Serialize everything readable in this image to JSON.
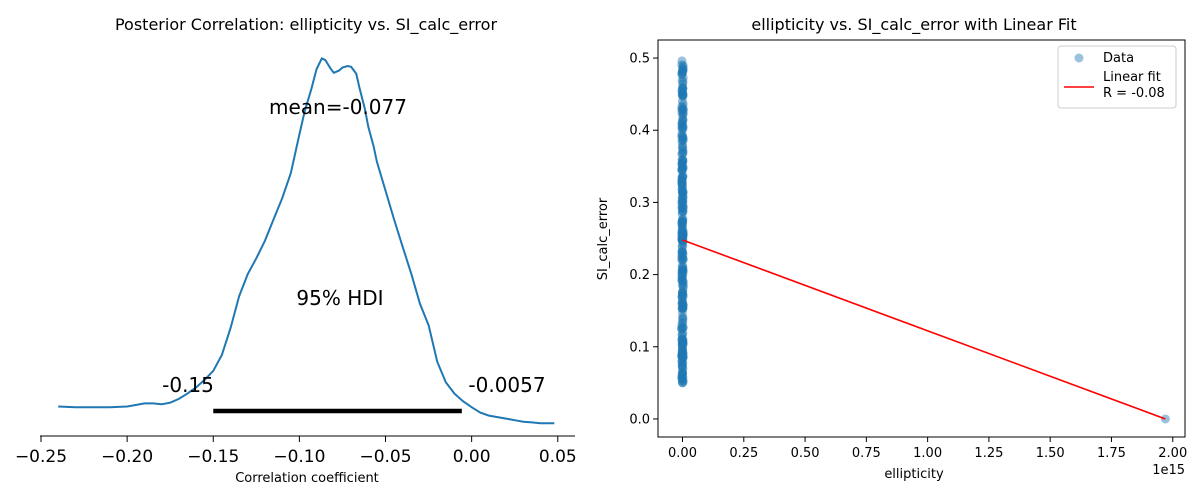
{
  "chart_data": [
    {
      "type": "line",
      "title": "Posterior Correlation: ellipticity vs. SI_calc_error",
      "xlabel": "Correlation coefficient",
      "ylabel": "",
      "xlim": [
        -0.25,
        0.06
      ],
      "xticks": [
        "−0.25",
        "−0.20",
        "−0.15",
        "−0.10",
        "−0.05",
        "0.00",
        "0.05"
      ],
      "xtick_values": [
        -0.25,
        -0.2,
        -0.15,
        -0.1,
        -0.05,
        0.0,
        0.05
      ],
      "grid": false,
      "series": [
        {
          "color": "#1f77b4",
          "x": [
            -0.24,
            -0.23,
            -0.22,
            -0.21,
            -0.2,
            -0.195,
            -0.19,
            -0.185,
            -0.18,
            -0.175,
            -0.17,
            -0.165,
            -0.16,
            -0.155,
            -0.15,
            -0.145,
            -0.14,
            -0.135,
            -0.13,
            -0.125,
            -0.12,
            -0.115,
            -0.11,
            -0.105,
            -0.1,
            -0.097,
            -0.093,
            -0.09,
            -0.087,
            -0.085,
            -0.082,
            -0.08,
            -0.077,
            -0.075,
            -0.072,
            -0.07,
            -0.067,
            -0.065,
            -0.062,
            -0.06,
            -0.057,
            -0.055,
            -0.05,
            -0.045,
            -0.04,
            -0.035,
            -0.03,
            -0.025,
            -0.02,
            -0.015,
            -0.01,
            -0.005,
            0.0,
            0.005,
            0.01,
            0.015,
            0.02,
            0.025,
            0.03,
            0.035,
            0.04,
            0.045,
            0.048
          ],
          "y": [
            0.02,
            0.01,
            0.01,
            0.01,
            0.02,
            0.04,
            0.06,
            0.06,
            0.05,
            0.07,
            0.12,
            0.19,
            0.27,
            0.37,
            0.49,
            0.7,
            1.05,
            1.47,
            1.76,
            1.97,
            2.2,
            2.48,
            2.76,
            3.09,
            3.6,
            3.9,
            4.2,
            4.46,
            4.6,
            4.58,
            4.47,
            4.41,
            4.44,
            4.48,
            4.5,
            4.49,
            4.4,
            4.2,
            3.94,
            3.7,
            3.45,
            3.24,
            2.86,
            2.48,
            2.12,
            1.76,
            1.37,
            1.09,
            0.61,
            0.34,
            0.19,
            0.09,
            0.01,
            -0.06,
            -0.1,
            -0.12,
            -0.14,
            -0.16,
            -0.18,
            -0.19,
            -0.2,
            -0.2,
            -0.2
          ]
        }
      ],
      "hdi": {
        "x_low": -0.15,
        "x_high": -0.0057,
        "low_label": "-0.15",
        "high_label": "-0.0057",
        "caption": "95% HDI"
      },
      "mean": {
        "value": -0.077,
        "label": "mean=-0.077"
      }
    },
    {
      "type": "scatter",
      "title": "ellipticity vs. SI_calc_error with Linear Fit",
      "xlabel": "ellipticity",
      "ylabel": "SI_calc_error",
      "offset_text": "1e15",
      "xlim": [
        -0.1,
        2.05
      ],
      "ylim": [
        -0.025,
        0.525
      ],
      "xticks": [
        "0.00",
        "0.25",
        "0.50",
        "0.75",
        "1.00",
        "1.25",
        "1.50",
        "1.75",
        "2.00"
      ],
      "xtick_values": [
        0,
        0.25,
        0.5,
        0.75,
        1.0,
        1.25,
        1.5,
        1.75,
        2.0
      ],
      "yticks": [
        "0.0",
        "0.1",
        "0.2",
        "0.3",
        "0.4",
        "0.5"
      ],
      "ytick_values": [
        0,
        0.1,
        0.2,
        0.3,
        0.4,
        0.5
      ],
      "grid": false,
      "legend_position": "top-right",
      "series": [
        {
          "name": "Data",
          "color": "#1f77b4",
          "opacity": 0.45,
          "cluster_x": 0.0,
          "cluster_y_range": [
            0.05,
            0.5
          ],
          "cluster_count": 300,
          "points": [
            {
              "x": 1.97,
              "y": 0.0
            }
          ]
        },
        {
          "name": "Linear fit",
          "name_line2": "R = -0.08",
          "color": "#ff0000",
          "x": [
            0.0,
            1.97
          ],
          "y": [
            0.248,
            0.0
          ]
        }
      ]
    }
  ]
}
